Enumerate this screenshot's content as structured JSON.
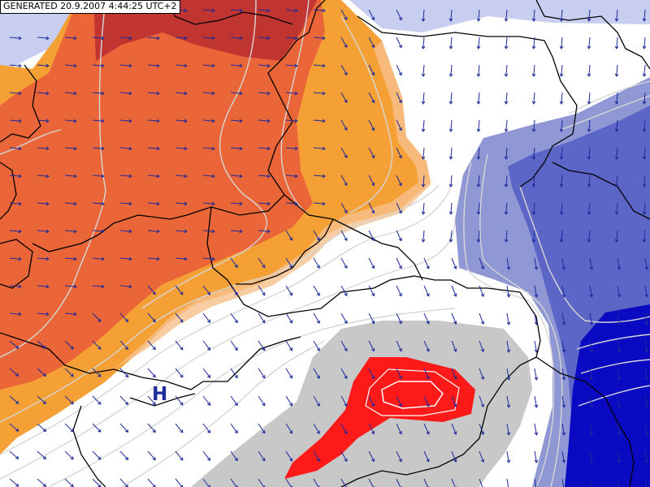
{
  "map": {
    "generated_label": "GENERATED 20.9.2007 4:44:25 UTC+2",
    "pressure_center_label": "H",
    "colors": {
      "darkred": "#c03530",
      "redorange": "#ea6638",
      "orange": "#f5a035",
      "light_orange": "#f7c08c",
      "lightblue": "#c8cef0",
      "blue_light": "#8f97d4",
      "blue_mid": "#5c66c6",
      "blue_dark": "#0a0ac2",
      "gray": "#c8c8c8",
      "red": "#ff1a1a",
      "arrow": "#1c2a9c",
      "isoline": "#d6d6d6",
      "border": "#000000"
    },
    "wind_arrows_icon": "wind-arrow-icon"
  }
}
